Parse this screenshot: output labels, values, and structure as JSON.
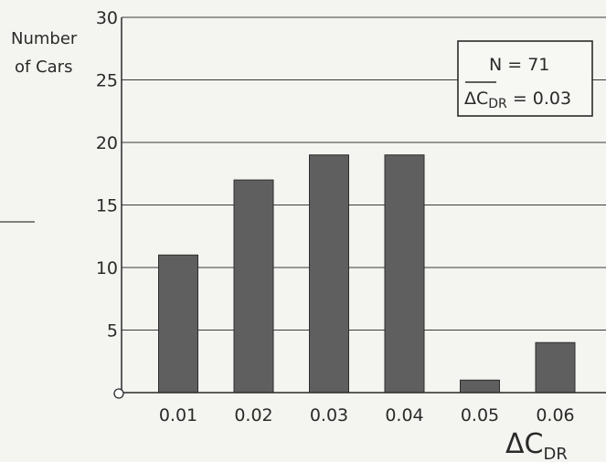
{
  "chart_data": {
    "type": "bar",
    "categories": [
      "0.01",
      "0.02",
      "0.03",
      "0.04",
      "0.05",
      "0.06"
    ],
    "values": [
      11,
      17,
      19,
      19,
      1,
      4
    ],
    "ylabel_line1": "Number",
    "ylabel_line2": "of Cars",
    "xlabel_main": "ΔC",
    "xlabel_sub": "DR",
    "ylim": [
      0,
      30
    ],
    "yticks": [
      "5",
      "10",
      "15",
      "20",
      "25",
      "30"
    ],
    "grid": true,
    "legend": {
      "n_text": "N = 71",
      "mean_main": "ΔC",
      "mean_sub": "DR",
      "mean_value": " = 0.03"
    },
    "colors": {
      "bar": "#5f5f5f",
      "bar_edge": "#2e2e2e",
      "grid": "#3a3a3a",
      "background": "#f4f4f1"
    }
  }
}
